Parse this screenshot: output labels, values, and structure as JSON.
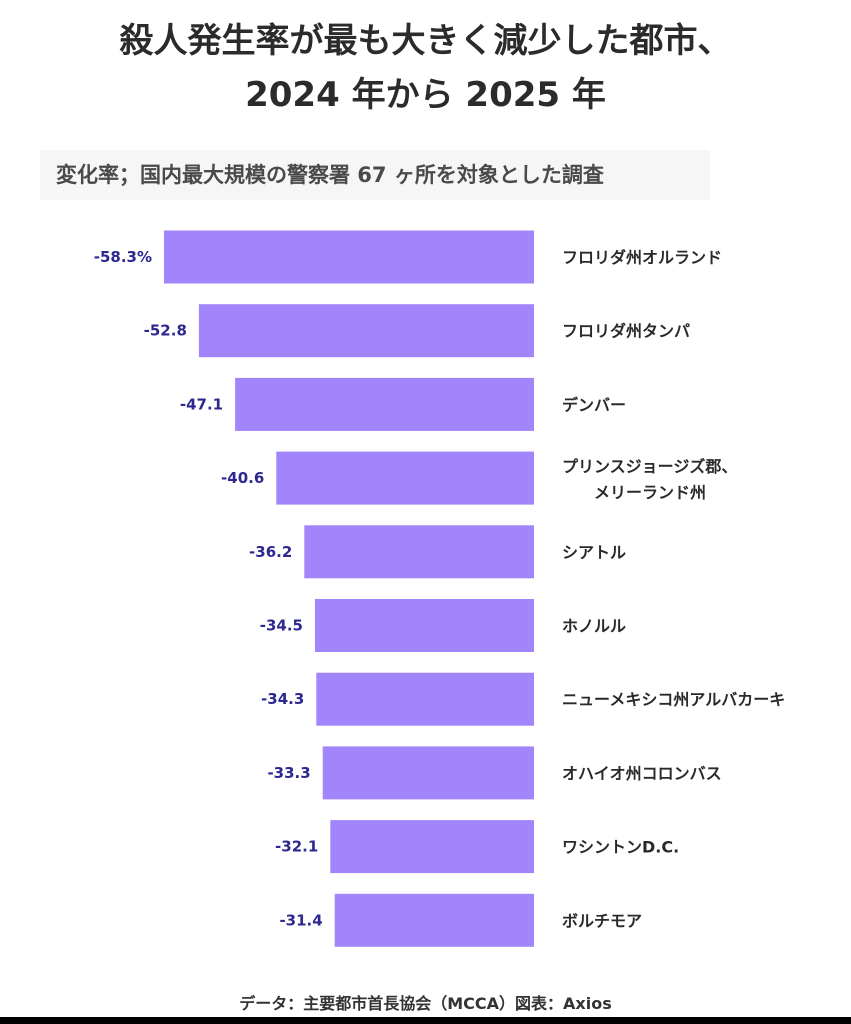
{
  "title_line1": "殺人発生率が最も大きく減少した都市、",
  "title_line2": "2024 年から 2025 年",
  "subtitle": "変化率；国内最大規模の警察署 67 ヶ所を対象とした調査",
  "source": "データ：主要都市首長協会（MCCA）図表：Axios",
  "colors": {
    "bar": "#a385fb",
    "value_label": "#2d2790"
  },
  "chart_data": {
    "type": "bar",
    "orientation": "horizontal",
    "title": "殺人発生率が最も大きく減少した都市、2024 年から 2025 年",
    "subtitle": "変化率；国内最大規模の警察署 67 ヶ所を対象とした調査",
    "categories": [
      [
        "フロリダ州オルランド"
      ],
      [
        "フロリダ州タンパ"
      ],
      [
        "デンバー"
      ],
      [
        "プリンスジョージズ郡、",
        "メリーランド州"
      ],
      [
        "シアトル"
      ],
      [
        "ホノルル"
      ],
      [
        "ニューメキシコ州アルバカーキ"
      ],
      [
        "オハイオ州コロンバス"
      ],
      [
        "ワシントンD.C."
      ],
      [
        "ボルチモア"
      ]
    ],
    "values": [
      -58.3,
      -52.8,
      -47.1,
      -40.6,
      -36.2,
      -34.5,
      -34.3,
      -33.3,
      -32.1,
      -31.4
    ],
    "value_labels": [
      "-58.3%",
      "-52.8",
      "-47.1",
      "-40.6",
      "-36.2",
      "-34.5",
      "-34.3",
      "-33.3",
      "-32.1",
      "-31.4"
    ],
    "xlim": [
      -58.3,
      0
    ]
  }
}
